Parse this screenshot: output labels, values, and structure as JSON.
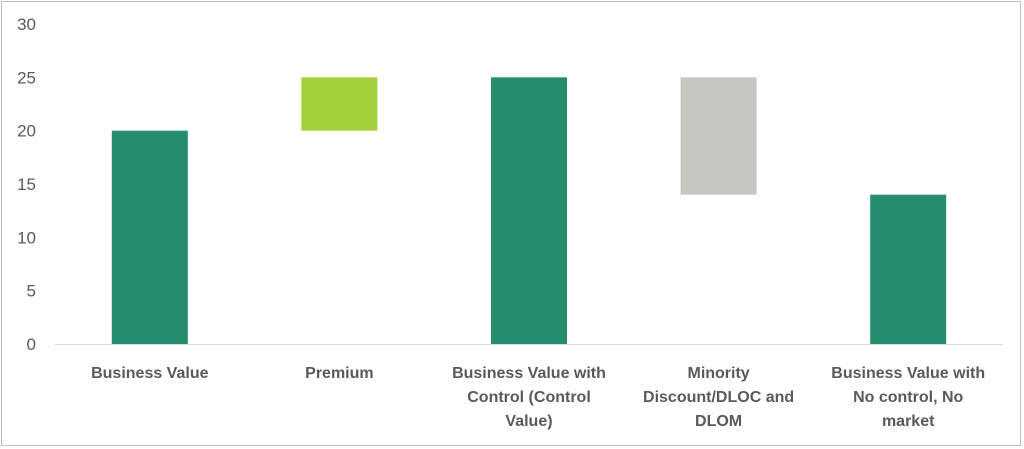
{
  "chart_data": {
    "type": "bar",
    "subtype": "waterfall",
    "title": "",
    "xlabel": "",
    "ylabel": "",
    "ylim": [
      0,
      30
    ],
    "yticks": [
      0,
      5,
      10,
      15,
      20,
      25,
      30
    ],
    "grid": false,
    "legend": "none",
    "categories": [
      [
        "Business Value"
      ],
      [
        "Premium"
      ],
      [
        "Business Value with",
        "Control (Control",
        "Value)"
      ],
      [
        "Minority",
        "Discount/DLOC and",
        "DLOM"
      ],
      [
        "Business Value with",
        "No control, No",
        "market"
      ]
    ],
    "bars": [
      {
        "base": 0,
        "top": 20,
        "color": "#238c6e"
      },
      {
        "base": 20,
        "top": 25,
        "color": "#a6cf3c"
      },
      {
        "base": 0,
        "top": 25,
        "color": "#238c6e"
      },
      {
        "base": 14,
        "top": 25,
        "color": "#c9c5c1"
      },
      {
        "base": 0,
        "top": 14,
        "color": "#238c6e"
      }
    ],
    "axis_color": "#d9d9d9"
  }
}
